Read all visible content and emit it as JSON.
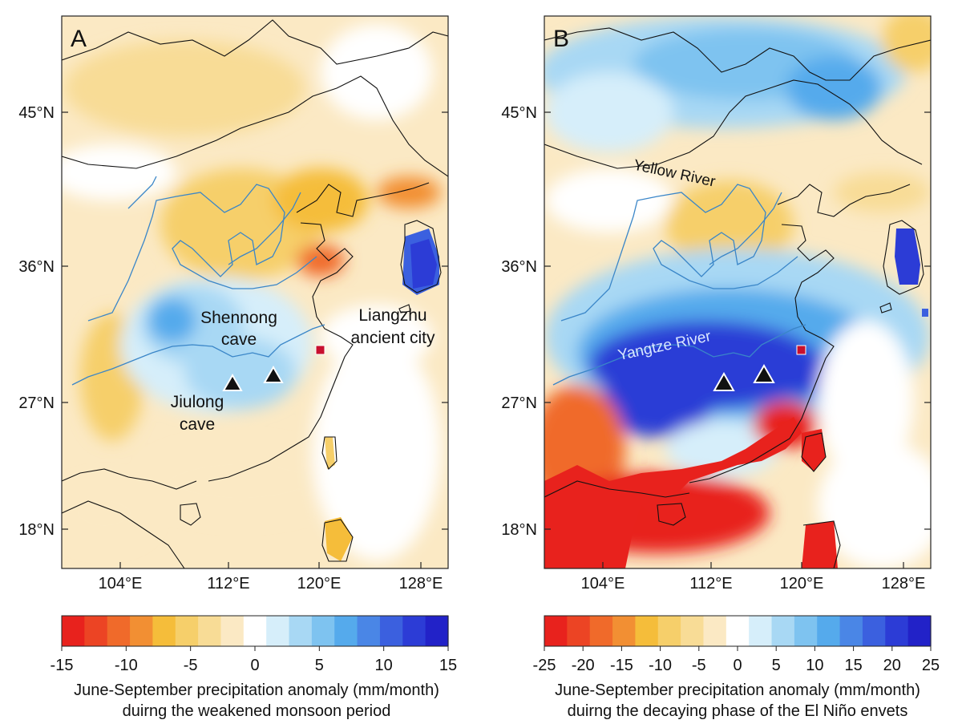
{
  "panels": [
    {
      "letter": "A",
      "lat_ticks": [
        "45°N",
        "36°N",
        "27°N",
        "18°N"
      ],
      "lon_ticks": [
        "104°E",
        "112°E",
        "120°E",
        "128°E"
      ],
      "labels": {
        "shennong": [
          "Shennong",
          "cave"
        ],
        "jiulong": [
          "Jiulong",
          "cave"
        ],
        "liangzhu": [
          "Liangzhu",
          "ancient city"
        ]
      },
      "colorbar": {
        "ticks": [
          "-15",
          "-10",
          "-5",
          "0",
          "5",
          "10",
          "15"
        ],
        "range": [
          -15,
          15
        ],
        "caption_line1": "June-September precipitation anomaly (mm/month)",
        "caption_line2": "duirng the weakened monsoon period"
      }
    },
    {
      "letter": "B",
      "lat_ticks": [
        "45°N",
        "36°N",
        "27°N",
        "18°N"
      ],
      "lon_ticks": [
        "104°E",
        "112°E",
        "120°E",
        "128°E"
      ],
      "labels": {
        "yellow_river": "Yellow  River",
        "yangtze_river": "Yangtze  River"
      },
      "colorbar": {
        "ticks": [
          "-25",
          "-20",
          "-15",
          "-10",
          "-5",
          "0",
          "5",
          "10",
          "15",
          "20",
          "25"
        ],
        "range": [
          -25,
          25
        ],
        "caption_line1": "June-September precipitation anomaly (mm/month)",
        "caption_line2": "duirng the decaying phase of the El Niño envets"
      }
    }
  ],
  "colors": {
    "scale": [
      "#e8221d",
      "#ec4424",
      "#f06a2a",
      "#f28f33",
      "#f5bd3a",
      "#f6cf6a",
      "#f8dc96",
      "#fbe9c4",
      "#ffffff",
      "#d6eefa",
      "#a8d8f4",
      "#7ec3f0",
      "#55aaec",
      "#4a86e6",
      "#3b60df",
      "#2c3cd6",
      "#2222c8"
    ],
    "river": "#3a86c8",
    "coast": "#111111",
    "site_marker": "#c8102e",
    "cave_marker": "#111111"
  }
}
